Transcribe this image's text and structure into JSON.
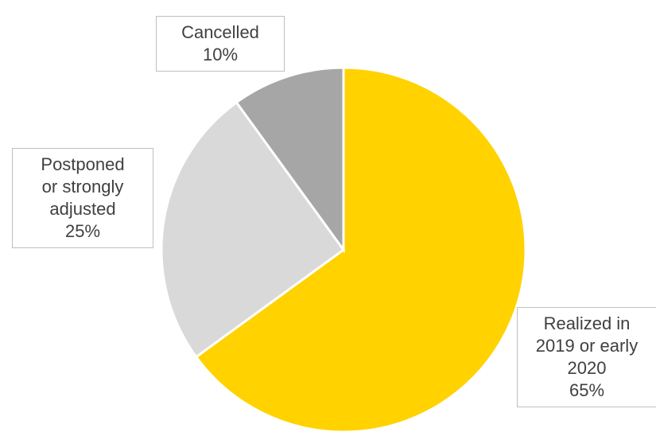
{
  "chart_data": {
    "type": "pie",
    "categories": [
      "Realized in 2019 or early 2020",
      "Postponed or strongly adjusted",
      "Cancelled"
    ],
    "values": [
      65,
      25,
      10
    ],
    "value_labels": [
      "65%",
      "25%",
      "10%"
    ],
    "colors": [
      "#FFD200",
      "#D9D9D9",
      "#A6A6A6"
    ]
  }
}
